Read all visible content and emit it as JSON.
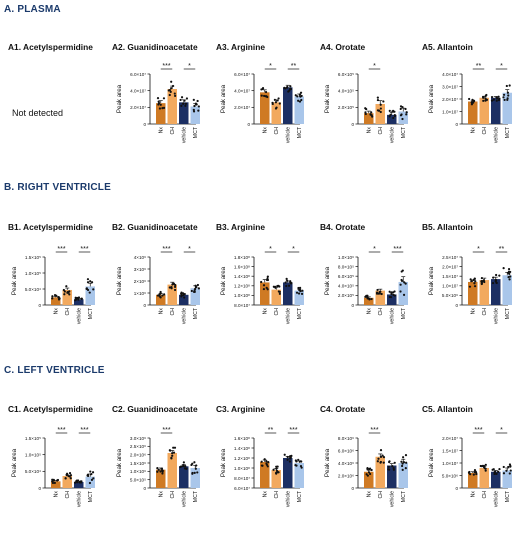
{
  "sections": [
    "A. PLASMA",
    "B. RIGHT VENTRICLE",
    "C. LEFT VENTRICLE"
  ],
  "not_detected": "Not detected",
  "groups": [
    "Nx",
    "CH",
    "vehicle",
    "MCT"
  ],
  "ylabel": "Peak area",
  "colors": {
    "Nx": "#cf7a24",
    "CH": "#f2a95e",
    "vehicle": "#1c2f63",
    "MCT": "#a9c6ea"
  },
  "chart_data": [
    {
      "id": "A2",
      "type": "bar",
      "title": "A2. Guanidinoacetate",
      "ylabel": "Peak area",
      "categories": [
        "Nx",
        "CH",
        "vehicle",
        "MCT"
      ],
      "ylim": [
        0,
        60000000.0
      ],
      "ticks": [
        0,
        20000000.0,
        40000000.0,
        60000000.0
      ],
      "tick_labels": [
        "0",
        "2.0×10⁷",
        "4.0×10⁷",
        "6.0×10⁷"
      ],
      "values": [
        25000000.0,
        42000000.0,
        26000000.0,
        21000000.0
      ],
      "errors": [
        3000000.0,
        3500000.0,
        3000000.0,
        3500000.0
      ],
      "sig": [
        {
          "from": 0,
          "to": 1,
          "label": "***"
        },
        {
          "from": 2,
          "to": 3,
          "label": "*"
        }
      ]
    },
    {
      "id": "A3",
      "type": "bar",
      "title": "A3. Arginine",
      "ylabel": "Peak area",
      "categories": [
        "Nx",
        "CH",
        "vehicle",
        "MCT"
      ],
      "ylim": [
        0,
        60000000.0
      ],
      "ticks": [
        0,
        20000000.0,
        40000000.0,
        60000000.0
      ],
      "tick_labels": [
        "0",
        "2.0×10⁷",
        "4.0×10⁷",
        "6.0×10⁷"
      ],
      "values": [
        38000000.0,
        26000000.0,
        44000000.0,
        33000000.0
      ],
      "errors": [
        3000000.0,
        3000000.0,
        2500000.0,
        3000000.0
      ],
      "sig": [
        {
          "from": 0,
          "to": 1,
          "label": "*"
        },
        {
          "from": 2,
          "to": 3,
          "label": "**"
        }
      ]
    },
    {
      "id": "A4",
      "type": "bar",
      "title": "A4. Orotate",
      "ylabel": "Peak area",
      "categories": [
        "Nx",
        "CH",
        "vehicle",
        "MCT"
      ],
      "ylim": [
        0,
        600000.0
      ],
      "ticks": [
        0,
        200000.0,
        400000.0,
        600000.0
      ],
      "tick_labels": [
        "0",
        "2.0×10⁵",
        "4.0×10⁵",
        "6.0×10⁵"
      ],
      "values": [
        130000.0,
        240000.0,
        110000.0,
        150000.0
      ],
      "errors": [
        25000.0,
        40000.0,
        30000.0,
        40000.0
      ],
      "sig": [
        {
          "from": 0,
          "to": 1,
          "label": "*"
        }
      ]
    },
    {
      "id": "A5",
      "type": "bar",
      "title": "A5. Allantoin",
      "ylabel": "Peak area",
      "categories": [
        "Nx",
        "CH",
        "vehicle",
        "MCT"
      ],
      "ylim": [
        0,
        40000000.0
      ],
      "ticks": [
        0,
        10000000.0,
        20000000.0,
        30000000.0,
        40000000.0
      ],
      "tick_labels": [
        "0",
        "1.0×10⁷",
        "2.0×10⁷",
        "3.0×10⁷",
        "4.0×10⁷"
      ],
      "values": [
        18000000.0,
        21000000.0,
        21000000.0,
        25000000.0
      ],
      "errors": [
        1000000.0,
        1000000.0,
        1000000.0,
        2500000.0
      ],
      "sig": [
        {
          "from": 0,
          "to": 1,
          "label": "**"
        },
        {
          "from": 2,
          "to": 3,
          "label": "*"
        }
      ]
    },
    {
      "id": "B1",
      "type": "bar",
      "title": "B1. Acetylspermidine",
      "ylabel": "Peak area",
      "categories": [
        "Nx",
        "CH",
        "vehicle",
        "MCT"
      ],
      "ylim": [
        0,
        150000.0
      ],
      "ticks": [
        0,
        50000.0,
        100000.0,
        150000.0
      ],
      "tick_labels": [
        "0",
        "5.0×10⁴",
        "1.0×10⁵",
        "1.5×10⁵"
      ],
      "values": [
        24000.0,
        47000.0,
        18000.0,
        58000.0
      ],
      "errors": [
        3000.0,
        6000.0,
        2500.0,
        10000.0
      ],
      "sig": [
        {
          "from": 0,
          "to": 1,
          "label": "***"
        },
        {
          "from": 2,
          "to": 3,
          "label": "***"
        }
      ]
    },
    {
      "id": "B2",
      "type": "bar",
      "title": "B2. Guanidinoacetate",
      "ylabel": "Peak area",
      "categories": [
        "Nx",
        "CH",
        "vehicle",
        "MCT"
      ],
      "ylim": [
        0,
        4000000.0
      ],
      "ticks": [
        0,
        1000000.0,
        2000000.0,
        3000000.0,
        4000000.0
      ],
      "tick_labels": [
        "0",
        "1×10⁶",
        "2×10⁶",
        "3×10⁶",
        "4×10⁶"
      ],
      "values": [
        850000.0,
        1700000.0,
        850000.0,
        1400000.0
      ],
      "errors": [
        100000.0,
        200000.0,
        100000.0,
        200000.0
      ],
      "sig": [
        {
          "from": 0,
          "to": 1,
          "label": "***"
        },
        {
          "from": 2,
          "to": 3,
          "label": "*"
        }
      ]
    },
    {
      "id": "B3",
      "type": "bar",
      "title": "B3. Arginine",
      "ylabel": "Peak area",
      "categories": [
        "Nx",
        "CH",
        "vehicle",
        "MCT"
      ],
      "ylim": [
        80000000.0,
        180000000.0
      ],
      "ticks": [
        80000000.0,
        100000000.0,
        120000000.0,
        140000000.0,
        160000000.0,
        180000000.0
      ],
      "tick_labels": [
        "8.0×10⁷",
        "1.0×10⁸",
        "1.2×10⁸",
        "1.4×10⁸",
        "1.6×10⁸",
        "1.8×10⁸"
      ],
      "values": [
        127000000.0,
        112000000.0,
        127000000.0,
        110000000.0
      ],
      "errors": [
        6000000.0,
        4000000.0,
        3000000.0,
        3000000.0
      ],
      "sig": [
        {
          "from": 0,
          "to": 1,
          "label": "*"
        },
        {
          "from": 2,
          "to": 3,
          "label": "*"
        }
      ]
    },
    {
      "id": "B4",
      "type": "bar",
      "title": "B4. Orotate",
      "ylabel": "Peak area",
      "categories": [
        "Nx",
        "CH",
        "vehicle",
        "MCT"
      ],
      "ylim": [
        0,
        1000000.0
      ],
      "ticks": [
        0,
        200000.0,
        400000.0,
        600000.0,
        800000.0,
        1000000.0
      ],
      "tick_labels": [
        "0",
        "2.0×10⁵",
        "4.0×10⁵",
        "6.0×10⁵",
        "8.0×10⁵",
        "1.0×10⁶"
      ],
      "values": [
        150000.0,
        300000.0,
        220000.0,
        480000.0
      ],
      "errors": [
        20000.0,
        30000.0,
        30000.0,
        110000.0
      ],
      "sig": [
        {
          "from": 0,
          "to": 1,
          "label": "*"
        },
        {
          "from": 2,
          "to": 3,
          "label": "***"
        }
      ]
    },
    {
      "id": "B5",
      "type": "bar",
      "title": "B5. Allantoin",
      "ylabel": "Peak area",
      "categories": [
        "Nx",
        "CH",
        "vehicle",
        "MCT"
      ],
      "ylim": [
        0,
        25000000.0
      ],
      "ticks": [
        0,
        5000000.0,
        10000000.0,
        15000000.0,
        20000000.0,
        25000000.0
      ],
      "tick_labels": [
        "0",
        "5.0×10⁶",
        "1.0×10⁷",
        "1.5×10⁷",
        "2.0×10⁷",
        "2.5×10⁷"
      ],
      "values": [
        12000000.0,
        13000000.0,
        13500000.0,
        15500000.0
      ],
      "errors": [
        1000000.0,
        1000000.0,
        1000000.0,
        1500000.0
      ],
      "sig": [
        {
          "from": 0,
          "to": 1,
          "label": "*"
        },
        {
          "from": 2,
          "to": 3,
          "label": "**"
        }
      ]
    },
    {
      "id": "C1",
      "type": "bar",
      "title": "C1. Acetylspermidine",
      "ylabel": "Peak area",
      "categories": [
        "Nx",
        "CH",
        "vehicle",
        "MCT"
      ],
      "ylim": [
        0,
        150000.0
      ],
      "ticks": [
        0,
        50000.0,
        100000.0,
        150000.0
      ],
      "tick_labels": [
        "0",
        "5.0×10⁴",
        "1.0×10⁵",
        "1.5×10⁵"
      ],
      "values": [
        20000.0,
        36000.0,
        18000.0,
        34000.0
      ],
      "errors": [
        2000.0,
        3500.0,
        2000.0,
        8000.0
      ],
      "sig": [
        {
          "from": 0,
          "to": 1,
          "label": "***"
        },
        {
          "from": 2,
          "to": 3,
          "label": "***"
        }
      ]
    },
    {
      "id": "C2",
      "type": "bar",
      "title": "C2. Guanidinoacetate",
      "ylabel": "Peak area",
      "categories": [
        "Nx",
        "CH",
        "vehicle",
        "MCT"
      ],
      "ylim": [
        0,
        3000000.0
      ],
      "ticks": [
        0,
        500000.0,
        1000000.0,
        1500000.0,
        2000000.0,
        2500000.0,
        3000000.0
      ],
      "tick_labels": [
        "0",
        "5.0×10⁵",
        "1.0×10⁶",
        "1.5×10⁶",
        "2.0×10⁶",
        "2.5×10⁶",
        "3.0×10⁶"
      ],
      "values": [
        1100000.0,
        2100000.0,
        1300000.0,
        1200000.0
      ],
      "errors": [
        100000.0,
        150000.0,
        100000.0,
        150000.0
      ],
      "sig": [
        {
          "from": 0,
          "to": 1,
          "label": "***"
        }
      ]
    },
    {
      "id": "C3",
      "type": "bar",
      "title": "C3. Arginine",
      "ylabel": "Peak area",
      "categories": [
        "Nx",
        "CH",
        "vehicle",
        "MCT"
      ],
      "ylim": [
        60000000.0,
        160000000.0
      ],
      "ticks": [
        60000000.0,
        80000000.0,
        100000000.0,
        120000000.0,
        140000000.0,
        160000000.0
      ],
      "tick_labels": [
        "6.0×10⁷",
        "8.0×10⁷",
        "1.0×10⁸",
        "1.2×10⁸",
        "1.4×10⁸",
        "1.6×10⁸"
      ],
      "values": [
        112000000.0,
        96000000.0,
        120000000.0,
        110000000.0
      ],
      "errors": [
        4000000.0,
        3000000.0,
        3000000.0,
        4000000.0
      ],
      "sig": [
        {
          "from": 0,
          "to": 1,
          "label": "**"
        },
        {
          "from": 2,
          "to": 3,
          "label": "***"
        }
      ]
    },
    {
      "id": "C4",
      "type": "bar",
      "title": "C4. Orotate",
      "ylabel": "Peak area",
      "categories": [
        "Nx",
        "CH",
        "vehicle",
        "MCT"
      ],
      "ylim": [
        0,
        8000000.0
      ],
      "ticks": [
        0,
        2000000.0,
        4000000.0,
        6000000.0,
        8000000.0
      ],
      "tick_labels": [
        "0",
        "2.0×10⁶",
        "4.0×10⁶",
        "6.0×10⁶",
        "8.0×10⁶"
      ],
      "values": [
        2600000.0,
        5000000.0,
        3600000.0,
        4000000.0
      ],
      "errors": [
        250000.0,
        450000.0,
        300000.0,
        600000.0
      ],
      "sig": [
        {
          "from": 0,
          "to": 1,
          "label": "***"
        }
      ]
    },
    {
      "id": "C5",
      "type": "bar",
      "title": "C5. Allantoin",
      "ylabel": "Peak area",
      "categories": [
        "Nx",
        "CH",
        "vehicle",
        "MCT"
      ],
      "ylim": [
        0,
        20000000.0
      ],
      "ticks": [
        0,
        5000000.0,
        10000000.0,
        15000000.0,
        20000000.0
      ],
      "tick_labels": [
        "0",
        "5.0×10⁶",
        "1.0×10⁷",
        "1.5×10⁷",
        "2.0×10⁷"
      ],
      "values": [
        6000000.0,
        8000000.0,
        6500000.0,
        7000000.0
      ],
      "errors": [
        500000.0,
        600000.0,
        500000.0,
        1000000.0
      ],
      "sig": [
        {
          "from": 0,
          "to": 1,
          "label": "***"
        },
        {
          "from": 2,
          "to": 3,
          "label": "*"
        }
      ]
    }
  ],
  "panel_titles": {
    "A1": "A1. Acetylspermidine",
    "A2": "A2. Guanidinoacetate",
    "A3": "A3. Arginine",
    "A4": "A4. Orotate",
    "A5": "A5. Allantoin",
    "B1": "B1. Acetylspermidine",
    "B2": "B2. Guanidinoacetate",
    "B3": "B3. Arginine",
    "B4": "B4. Orotate",
    "B5": "B5. Allantoin",
    "C1": "C1. Acetylspermidine",
    "C2": "C2. Guanidinoacetate",
    "C3": "C3. Arginine",
    "C4": "C4. Orotate",
    "C5": "C5. Allantoin"
  }
}
